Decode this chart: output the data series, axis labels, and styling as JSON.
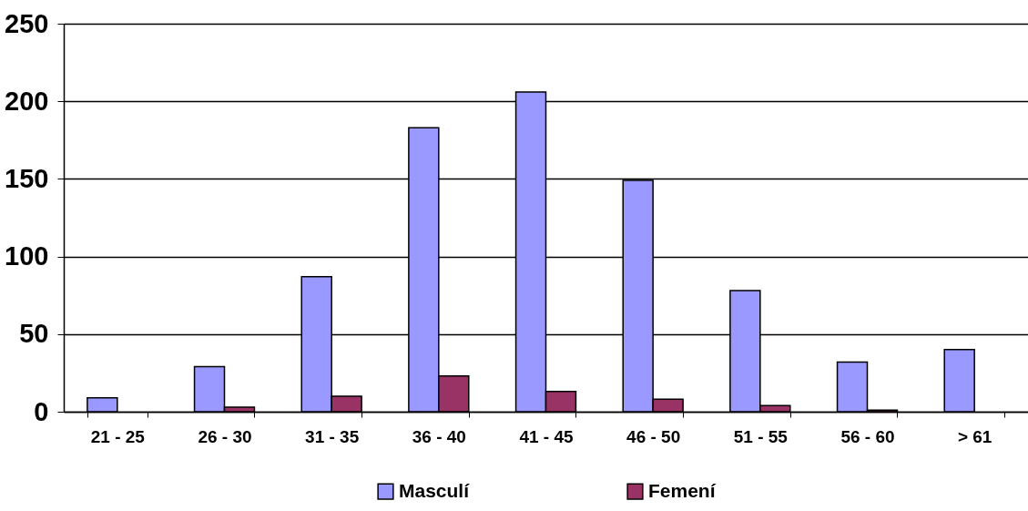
{
  "chart_data": {
    "type": "bar",
    "categories": [
      "21 - 25",
      "26 - 30",
      "31 - 35",
      "36 - 40",
      "41 - 45",
      "46 - 50",
      "51 - 55",
      "56 - 60",
      "> 61"
    ],
    "series": [
      {
        "name": "Masculí",
        "color": "#9999ff",
        "values": [
          9,
          29,
          87,
          183,
          206,
          149,
          78,
          32,
          40
        ]
      },
      {
        "name": "Femení",
        "color": "#993366",
        "values": [
          null,
          3,
          10,
          23,
          13,
          8,
          4,
          1,
          null
        ]
      }
    ],
    "ylim": [
      0,
      250
    ],
    "yticks": [
      0,
      50,
      100,
      150,
      200,
      250
    ],
    "grid": "y",
    "legend": "bottom"
  }
}
